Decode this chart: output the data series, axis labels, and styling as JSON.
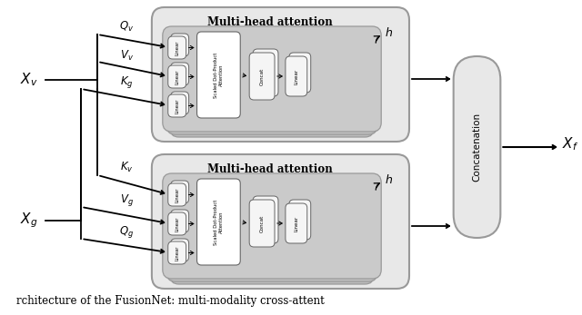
{
  "fig_width": 6.4,
  "fig_height": 3.47,
  "bg_color": "#ffffff",
  "outer_bg": "#e8e8e8",
  "mid_bg": "#d8d8d8",
  "inner_bg": "#cccccc",
  "innermost_bg": "#c4c4c4",
  "white": "#ffffff",
  "pill_bg": "#e8e8e8",
  "title_top": "Multi-head attention",
  "title_bottom": "Multi-head attention",
  "concat_label": "Concatenation",
  "output_label": "$X_f$",
  "inputs_top": [
    "$Q_v$",
    "$V_v$",
    "$K_g$"
  ],
  "inputs_bottom": [
    "$K_v$",
    "$V_g$",
    "$Q_g$"
  ],
  "input_left_top": "$X_v$",
  "input_left_bottom": "$X_g$",
  "h_label": "$h$",
  "linear_label": "Linear",
  "concat_box_label": "Concat",
  "sdpa_label": "Scaled Dot-Product\nAttention",
  "caption": "rchitecture of the FusionNet: multi-modality cross-attent",
  "edge_color": "#999999",
  "dark_edge": "#555555"
}
